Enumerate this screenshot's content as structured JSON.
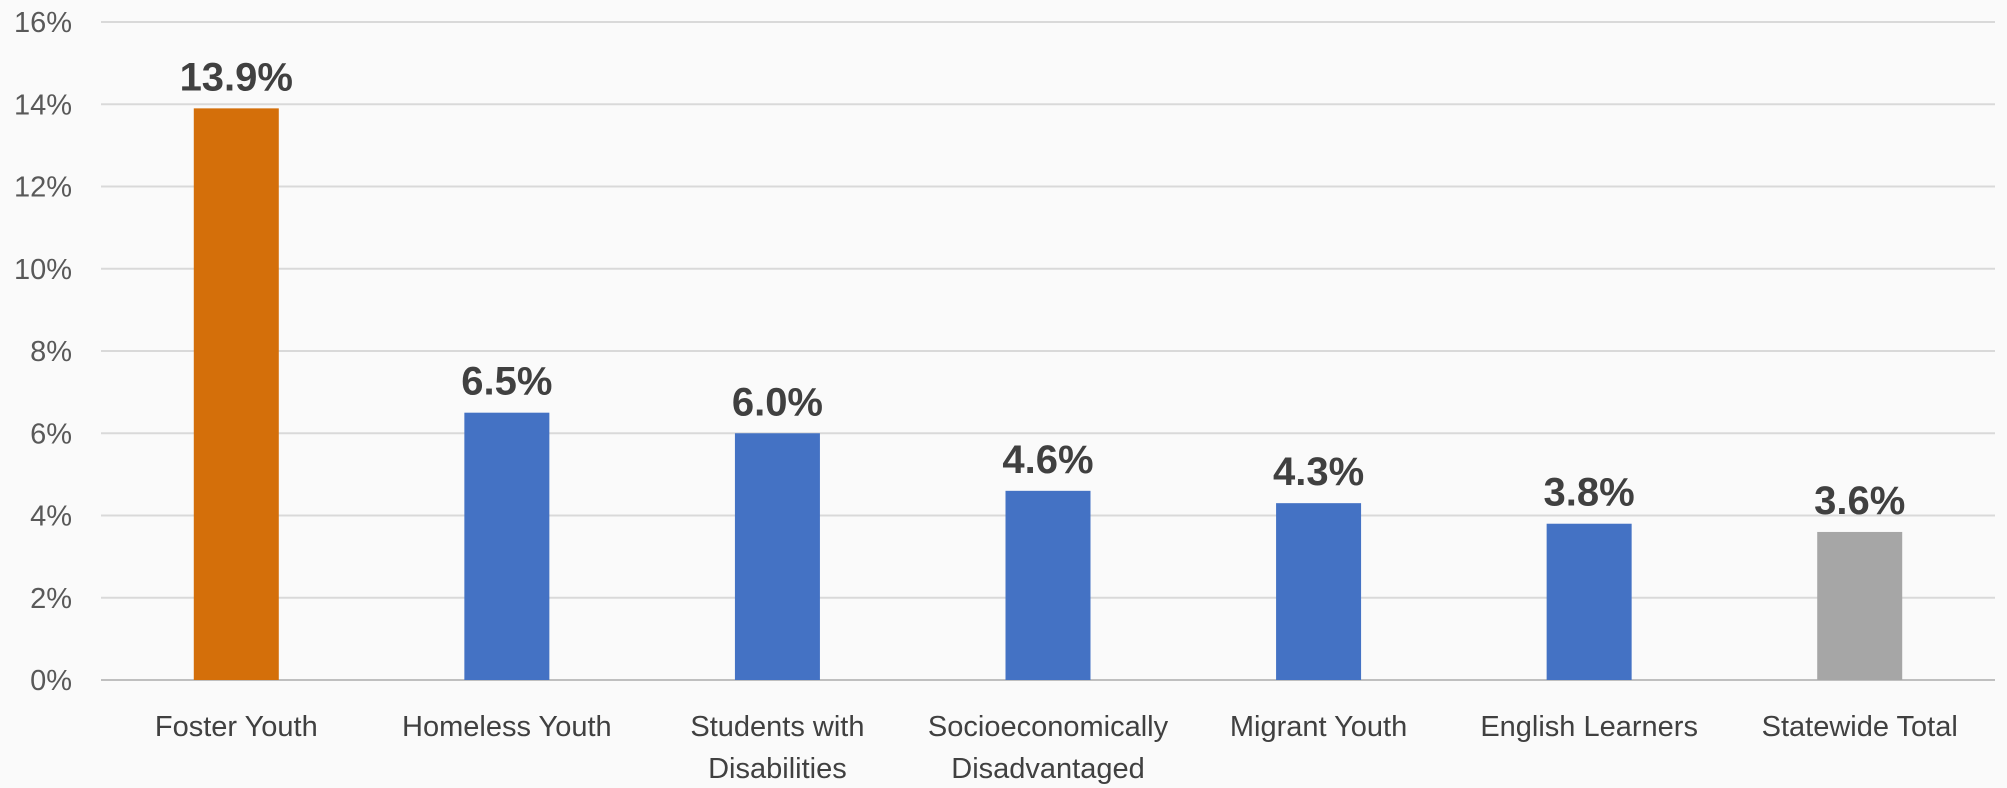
{
  "chart_data": {
    "type": "bar",
    "title": "",
    "xlabel": "",
    "ylabel": "",
    "ylim": [
      0,
      16
    ],
    "yticks": [
      "0%",
      "2%",
      "4%",
      "6%",
      "8%",
      "10%",
      "12%",
      "14%",
      "16%"
    ],
    "grid": true,
    "legend": "none",
    "categories": [
      [
        "Foster Youth"
      ],
      [
        "Homeless Youth"
      ],
      [
        "Students with",
        "Disabilities"
      ],
      [
        "Socioeconomically",
        "Disadvantaged"
      ],
      [
        "Migrant Youth"
      ],
      [
        "English Learners"
      ],
      [
        "Statewide Total"
      ]
    ],
    "values": [
      13.9,
      6.5,
      6.0,
      4.6,
      4.3,
      3.8,
      3.6
    ],
    "data_labels": [
      "13.9%",
      "6.5%",
      "6.0%",
      "4.6%",
      "4.3%",
      "3.8%",
      "3.6%"
    ],
    "colors": [
      "#d46f0a",
      "#4472c4",
      "#4472c4",
      "#4472c4",
      "#4472c4",
      "#4472c4",
      "#a6a6a6"
    ]
  }
}
